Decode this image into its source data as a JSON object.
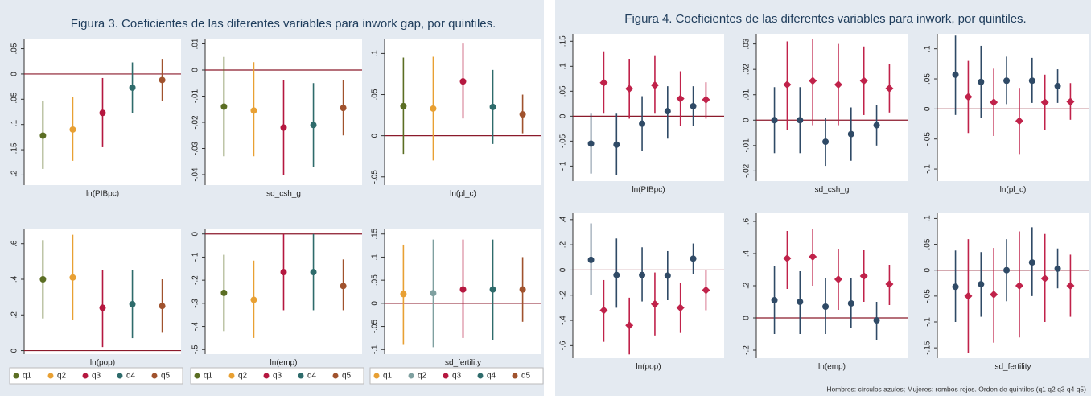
{
  "figures": [
    {
      "title": "Figura 3. Coeficientes de las diferentes variables para inwork gap, por quintiles."
    },
    {
      "title": "Figura 4. Coeficientes de las diferentes variables para inwork, por quintiles.",
      "note": "Hombres: círculos azules; Mujeres: rombos rojos. Orden de quintiles (q1 q2 q3 q4 q5)"
    }
  ],
  "chart_data": [
    {
      "type": "errorbar",
      "xlabel": "ln(PIBpc)",
      "ylim": [
        -0.22,
        0.07
      ],
      "refline": 0,
      "yticks": [
        {
          "value": 0.05,
          "label": ".05"
        },
        0,
        {
          "value": -0.05,
          "label": "-.05"
        },
        {
          "value": -0.1,
          "label": "-.1"
        },
        {
          "value": -0.15,
          "label": "-.15"
        },
        {
          "value": -0.2,
          "label": "-.2"
        }
      ],
      "series": [
        {
          "name": "q1",
          "color": "#5b6e23",
          "values": [
            -0.122
          ],
          "lower": [
            -0.188
          ],
          "upper": [
            -0.053
          ]
        },
        {
          "name": "q2",
          "color": "#e8a033",
          "values": [
            -0.11
          ],
          "lower": [
            -0.172
          ],
          "upper": [
            -0.045
          ]
        },
        {
          "name": "q3",
          "color": "#b5173f",
          "values": [
            -0.077
          ],
          "lower": [
            -0.145
          ],
          "upper": [
            -0.008
          ]
        },
        {
          "name": "q4",
          "color": "#2e6b6b",
          "values": [
            -0.027
          ],
          "lower": [
            -0.077
          ],
          "upper": [
            0.023
          ]
        },
        {
          "name": "q5",
          "color": "#a0522d",
          "values": [
            -0.012
          ],
          "lower": [
            -0.053
          ],
          "upper": [
            0.03
          ]
        }
      ]
    },
    {
      "type": "errorbar",
      "xlabel": "sd_csh_g",
      "ylim": [
        -0.044,
        0.012
      ],
      "refline": 0,
      "yticks": [
        {
          "value": 0.01,
          "label": ".01"
        },
        0,
        {
          "value": -0.01,
          "label": "-.01"
        },
        {
          "value": -0.02,
          "label": "-.02"
        },
        {
          "value": -0.03,
          "label": "-.03"
        },
        {
          "value": -0.04,
          "label": "-.04"
        }
      ],
      "series": [
        {
          "name": "q1",
          "color": "#5b6e23",
          "values": [
            -0.014
          ],
          "lower": [
            -0.033
          ],
          "upper": [
            0.005
          ]
        },
        {
          "name": "q2",
          "color": "#e8a033",
          "values": [
            -0.0155
          ],
          "lower": [
            -0.033
          ],
          "upper": [
            0.003
          ]
        },
        {
          "name": "q3",
          "color": "#b5173f",
          "values": [
            -0.022
          ],
          "lower": [
            -0.04
          ],
          "upper": [
            -0.004
          ]
        },
        {
          "name": "q4",
          "color": "#2e6b6b",
          "values": [
            -0.021
          ],
          "lower": [
            -0.037
          ],
          "upper": [
            -0.005
          ]
        },
        {
          "name": "q5",
          "color": "#a0522d",
          "values": [
            -0.0145
          ],
          "lower": [
            -0.025
          ],
          "upper": [
            -0.004
          ]
        }
      ]
    },
    {
      "type": "errorbar",
      "xlabel": "ln(pl_c)",
      "ylim": [
        -0.06,
        0.118
      ],
      "refline": 0,
      "yticks": [
        {
          "value": 0.1,
          "label": ".1"
        },
        {
          "value": 0.05,
          "label": ".05"
        },
        0,
        {
          "value": -0.05,
          "label": "-.05"
        }
      ],
      "series": [
        {
          "name": "q1",
          "color": "#5b6e23",
          "values": [
            0.036
          ],
          "lower": [
            -0.022
          ],
          "upper": [
            0.095
          ]
        },
        {
          "name": "q2",
          "color": "#e8a033",
          "values": [
            0.033
          ],
          "lower": [
            -0.03
          ],
          "upper": [
            0.096
          ]
        },
        {
          "name": "q3",
          "color": "#b5173f",
          "values": [
            0.066
          ],
          "lower": [
            0.021
          ],
          "upper": [
            0.112
          ]
        },
        {
          "name": "q4",
          "color": "#2e6b6b",
          "values": [
            0.035
          ],
          "lower": [
            -0.01
          ],
          "upper": [
            0.08
          ]
        },
        {
          "name": "q5",
          "color": "#a0522d",
          "values": [
            0.026
          ],
          "lower": [
            0.003
          ],
          "upper": [
            0.05
          ]
        }
      ]
    },
    {
      "type": "errorbar",
      "xlabel": "ln(pop)",
      "ylim": [
        -0.02,
        0.68
      ],
      "refline": 0,
      "legend": "bottom",
      "yticks": [
        {
          "value": 0.6,
          "label": ".6"
        },
        {
          "value": 0.4,
          "label": ".4"
        },
        {
          "value": 0.2,
          "label": ".2"
        },
        0
      ],
      "series": [
        {
          "name": "q1",
          "color": "#5b6e23",
          "values": [
            0.4
          ],
          "lower": [
            0.18
          ],
          "upper": [
            0.62
          ]
        },
        {
          "name": "q2",
          "color": "#e8a033",
          "values": [
            0.41
          ],
          "lower": [
            0.17
          ],
          "upper": [
            0.65
          ]
        },
        {
          "name": "q3",
          "color": "#b5173f",
          "values": [
            0.24
          ],
          "lower": [
            0.02
          ],
          "upper": [
            0.45
          ]
        },
        {
          "name": "q4",
          "color": "#2e6b6b",
          "values": [
            0.26
          ],
          "lower": [
            0.07
          ],
          "upper": [
            0.45
          ]
        },
        {
          "name": "q5",
          "color": "#a0522d",
          "values": [
            0.25
          ],
          "lower": [
            0.1
          ],
          "upper": [
            0.4
          ]
        }
      ]
    },
    {
      "type": "errorbar",
      "xlabel": "ln(emp)",
      "ylim": [
        -0.52,
        0.02
      ],
      "refline": 0,
      "legend": "bottom",
      "yticks": [
        0,
        {
          "value": -0.1,
          "label": "-.1"
        },
        {
          "value": -0.2,
          "label": "-.2"
        },
        {
          "value": -0.3,
          "label": "-.3"
        },
        {
          "value": -0.4,
          "label": "-.4"
        },
        {
          "value": -0.5,
          "label": "-.5"
        }
      ],
      "series": [
        {
          "name": "q1",
          "color": "#5b6e23",
          "values": [
            -0.255
          ],
          "lower": [
            -0.42
          ],
          "upper": [
            -0.09
          ]
        },
        {
          "name": "q2",
          "color": "#e8a033",
          "values": [
            -0.285
          ],
          "lower": [
            -0.45
          ],
          "upper": [
            -0.115
          ]
        },
        {
          "name": "q3",
          "color": "#b5173f",
          "values": [
            -0.165
          ],
          "lower": [
            -0.33
          ],
          "upper": [
            0.0
          ]
        },
        {
          "name": "q4",
          "color": "#2e6b6b",
          "values": [
            -0.165
          ],
          "lower": [
            -0.33
          ],
          "upper": [
            0.0
          ]
        },
        {
          "name": "q5",
          "color": "#a0522d",
          "values": [
            -0.225
          ],
          "lower": [
            -0.33
          ],
          "upper": [
            -0.11
          ]
        }
      ]
    },
    {
      "type": "errorbar",
      "xlabel": "sd_fertility",
      "ylim": [
        -0.11,
        0.16
      ],
      "refline": 0,
      "legend": "bottom",
      "yticks": [
        {
          "value": 0.15,
          "label": ".15"
        },
        {
          "value": 0.1,
          "label": ".1"
        },
        {
          "value": 0.05,
          "label": ".05"
        },
        0,
        {
          "value": -0.05,
          "label": "-.05"
        },
        {
          "value": -0.1,
          "label": "-.1"
        }
      ],
      "series": [
        {
          "name": "q1",
          "color": "#e8a033",
          "values": [
            0.02
          ],
          "lower": [
            -0.09
          ],
          "upper": [
            0.127
          ]
        },
        {
          "name": "q2",
          "color": "#7fa0a0",
          "values": [
            0.022
          ],
          "lower": [
            -0.095
          ],
          "upper": [
            0.138
          ]
        },
        {
          "name": "q3",
          "color": "#b5173f",
          "values": [
            0.03
          ],
          "lower": [
            -0.075
          ],
          "upper": [
            0.138
          ]
        },
        {
          "name": "q4",
          "color": "#2e6b6b",
          "values": [
            0.03
          ],
          "lower": [
            -0.08
          ],
          "upper": [
            0.138
          ]
        },
        {
          "name": "q5",
          "color": "#a0522d",
          "values": [
            0.03
          ],
          "lower": [
            -0.04
          ],
          "upper": [
            0.1
          ]
        }
      ]
    },
    {
      "type": "errorbar",
      "xlabel": "ln(PIBpc)",
      "ylim": [
        -0.13,
        0.165
      ],
      "refline": 0,
      "yticks": [
        {
          "value": 0.15,
          "label": ".15"
        },
        {
          "value": 0.1,
          "label": ".1"
        },
        {
          "value": 0.05,
          "label": ".05"
        },
        0,
        {
          "value": -0.05,
          "label": "-.05"
        },
        {
          "value": -0.1,
          "label": "-.1"
        }
      ],
      "series": [
        {
          "marker": "circle",
          "color": "#2f4a66",
          "values": [
            -0.055,
            -0.057,
            -0.015,
            0.01,
            0.02
          ],
          "lower": [
            -0.115,
            -0.118,
            -0.07,
            -0.045,
            -0.02
          ],
          "upper": [
            0.005,
            0.005,
            0.04,
            0.06,
            0.06
          ]
        },
        {
          "marker": "diamond",
          "color": "#c0224a",
          "values": [
            0.067,
            0.055,
            0.062,
            0.035,
            0.033
          ],
          "lower": [
            0.005,
            -0.005,
            0.005,
            -0.02,
            -0.005
          ],
          "upper": [
            0.13,
            0.115,
            0.122,
            0.09,
            0.068
          ]
        }
      ]
    },
    {
      "type": "errorbar",
      "xlabel": "sd_csh_g",
      "ylim": [
        -0.024,
        0.034
      ],
      "refline": 0,
      "yticks": [
        {
          "value": 0.03,
          "label": ".03"
        },
        {
          "value": 0.02,
          "label": ".02"
        },
        {
          "value": 0.01,
          "label": ".01"
        },
        0,
        {
          "value": -0.01,
          "label": "-.01"
        },
        {
          "value": -0.02,
          "label": "-.02"
        }
      ],
      "series": [
        {
          "marker": "circle",
          "color": "#2f4a66",
          "values": [
            0,
            0,
            -0.0085,
            -0.0055,
            -0.002
          ],
          "lower": [
            -0.013,
            -0.013,
            -0.018,
            -0.016,
            -0.01
          ],
          "upper": [
            0.013,
            0.013,
            0.001,
            0.005,
            0.006
          ]
        },
        {
          "marker": "diamond",
          "color": "#c0224a",
          "values": [
            0.014,
            0.0155,
            0.014,
            0.0155,
            0.0125
          ],
          "lower": [
            -0.004,
            -0.002,
            -0.002,
            0.002,
            0.003
          ],
          "upper": [
            0.031,
            0.032,
            0.03,
            0.029,
            0.022
          ]
        }
      ]
    },
    {
      "type": "errorbar",
      "xlabel": "ln(pl_c)",
      "ylim": [
        -0.12,
        0.125
      ],
      "refline": 0,
      "yticks": [
        {
          "value": 0.1,
          "label": ".1"
        },
        {
          "value": 0.05,
          "label": ".05"
        },
        0,
        {
          "value": -0.05,
          "label": "-.05"
        },
        {
          "value": -0.1,
          "label": "-.1"
        }
      ],
      "series": [
        {
          "marker": "circle",
          "color": "#2f4a66",
          "values": [
            0.057,
            0.045,
            0.047,
            0.047,
            0.038
          ],
          "lower": [
            -0.01,
            -0.015,
            0.008,
            0.01,
            0.01
          ],
          "upper": [
            0.122,
            0.105,
            0.087,
            0.085,
            0.066
          ]
        },
        {
          "marker": "diamond",
          "color": "#c0224a",
          "values": [
            0.02,
            0.011,
            -0.02,
            0.011,
            0.012
          ],
          "lower": [
            -0.04,
            -0.045,
            -0.075,
            -0.035,
            -0.018
          ],
          "upper": [
            0.08,
            0.067,
            0.035,
            0.057,
            0.043
          ]
        }
      ]
    },
    {
      "type": "errorbar",
      "xlabel": "ln(pop)",
      "ylim": [
        -0.7,
        0.45
      ],
      "refline": 0,
      "yticks": [
        {
          "value": 0.4,
          "label": ".4"
        },
        {
          "value": 0.2,
          "label": ".2"
        },
        0,
        {
          "value": -0.2,
          "label": "-.2"
        },
        {
          "value": -0.4,
          "label": "-.4"
        },
        {
          "value": -0.6,
          "label": "-.6"
        }
      ],
      "series": [
        {
          "marker": "circle",
          "color": "#2f4a66",
          "values": [
            0.08,
            -0.04,
            -0.04,
            -0.045,
            0.09
          ],
          "lower": [
            -0.2,
            -0.3,
            -0.25,
            -0.24,
            -0.03
          ],
          "upper": [
            0.37,
            0.25,
            0.18,
            0.15,
            0.21
          ]
        },
        {
          "marker": "diamond",
          "color": "#c0224a",
          "values": [
            -0.32,
            -0.44,
            -0.27,
            -0.3,
            -0.16
          ],
          "lower": [
            -0.57,
            -0.67,
            -0.52,
            -0.5,
            -0.32
          ],
          "upper": [
            -0.08,
            -0.22,
            -0.02,
            -0.1,
            0.0
          ]
        }
      ]
    },
    {
      "type": "errorbar",
      "xlabel": "ln(emp)",
      "ylim": [
        -0.25,
        0.65
      ],
      "refline": 0,
      "yticks": [
        {
          "value": 0.6,
          "label": ".6"
        },
        {
          "value": 0.4,
          "label": ".4"
        },
        {
          "value": 0.2,
          "label": ".2"
        },
        0,
        {
          "value": -0.2,
          "label": "-.2"
        }
      ],
      "series": [
        {
          "marker": "circle",
          "color": "#2f4a66",
          "values": [
            0.11,
            0.1,
            0.07,
            0.09,
            -0.015
          ],
          "lower": [
            -0.1,
            -0.1,
            -0.1,
            -0.06,
            -0.14
          ],
          "upper": [
            0.32,
            0.29,
            0.25,
            0.25,
            0.1
          ]
        },
        {
          "marker": "diamond",
          "color": "#c0224a",
          "values": [
            0.37,
            0.38,
            0.24,
            0.26,
            0.21
          ],
          "lower": [
            0.18,
            0.2,
            0.05,
            0.1,
            0.08
          ],
          "upper": [
            0.54,
            0.55,
            0.43,
            0.42,
            0.33
          ]
        }
      ]
    },
    {
      "type": "errorbar",
      "xlabel": "sd_fertility",
      "ylim": [
        -0.17,
        0.11
      ],
      "refline": 0,
      "yticks": [
        {
          "value": 0.1,
          "label": ".1"
        },
        {
          "value": 0.05,
          "label": ".05"
        },
        0,
        {
          "value": -0.05,
          "label": "-.05"
        },
        {
          "value": -0.1,
          "label": "-.1"
        },
        {
          "value": -0.15,
          "label": "-.15"
        }
      ],
      "series": [
        {
          "marker": "circle",
          "color": "#2f4a66",
          "values": [
            -0.032,
            -0.027,
            0,
            0.015,
            0.003
          ],
          "lower": [
            -0.1,
            -0.09,
            -0.06,
            -0.05,
            -0.035
          ],
          "upper": [
            0.038,
            0.035,
            0.06,
            0.083,
            0.042
          ]
        },
        {
          "marker": "diamond",
          "color": "#c0224a",
          "values": [
            -0.05,
            -0.047,
            -0.03,
            -0.016,
            -0.03
          ],
          "lower": [
            -0.16,
            -0.14,
            -0.13,
            -0.1,
            -0.09
          ],
          "upper": [
            0.06,
            0.043,
            0.075,
            0.07,
            0.03
          ]
        }
      ]
    }
  ]
}
